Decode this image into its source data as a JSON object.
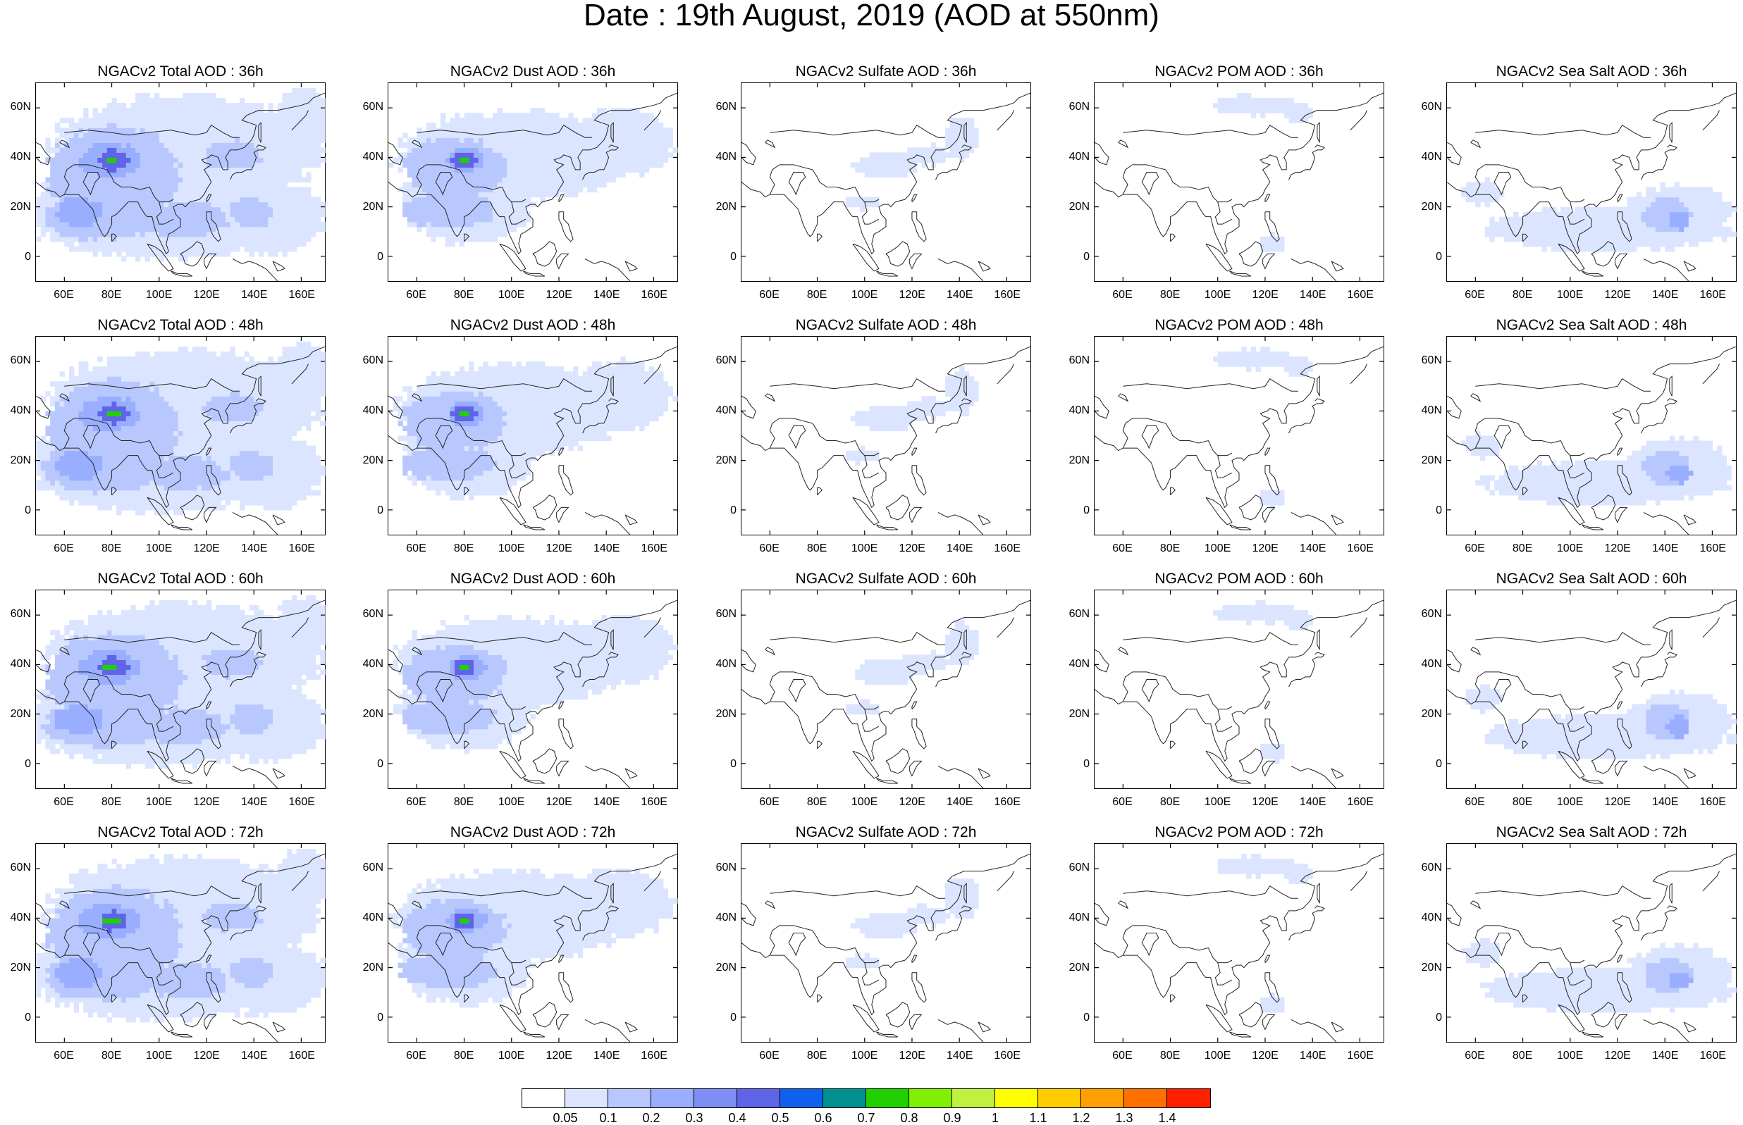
{
  "title": "Date : 19th August, 2019 (AOD at 550nm)",
  "lat_labels": [
    "60N",
    "40N",
    "20N",
    "0"
  ],
  "lon_labels": [
    "60E",
    "80E",
    "100E",
    "120E",
    "140E",
    "160E"
  ],
  "rows": [
    [
      "NGACv2 Total AOD : 36h",
      "NGACv2 Dust AOD : 36h",
      "NGACv2 Sulfate AOD : 36h",
      "NGACv2 POM AOD : 36h",
      "NGACv2 Sea Salt AOD : 36h"
    ],
    [
      "NGACv2 Total AOD : 48h",
      "NGACv2 Dust AOD : 48h",
      "NGACv2 Sulfate AOD : 48h",
      "NGACv2 POM AOD : 48h",
      "NGACv2 Sea Salt AOD : 48h"
    ],
    [
      "NGACv2 Total AOD : 60h",
      "NGACv2 Dust AOD : 60h",
      "NGACv2 Sulfate AOD : 60h",
      "NGACv2 POM AOD : 60h",
      "NGACv2 Sea Salt AOD : 60h"
    ],
    [
      "NGACv2 Total AOD : 72h",
      "NGACv2 Dust AOD : 72h",
      "NGACv2 Sulfate AOD : 72h",
      "NGACv2 POM AOD : 72h",
      "NGACv2 Sea Salt  AOD : 72h"
    ]
  ],
  "colorbar": {
    "ticks": [
      "0.05",
      "0.1",
      "0.2",
      "0.3",
      "0.4",
      "0.5",
      "0.6",
      "0.7",
      "0.8",
      "0.9",
      "1",
      "1.1",
      "1.2",
      "1.3",
      "1.4"
    ],
    "colors": [
      "#ffffff",
      "#dbe5ff",
      "#b8c8ff",
      "#9aaeff",
      "#7f8df5",
      "#5f64e8",
      "#1060f0",
      "#009090",
      "#20d000",
      "#80f000",
      "#c0f040",
      "#ffff00",
      "#ffcc00",
      "#ffa000",
      "#ff7000",
      "#ff2000"
    ]
  }
}
